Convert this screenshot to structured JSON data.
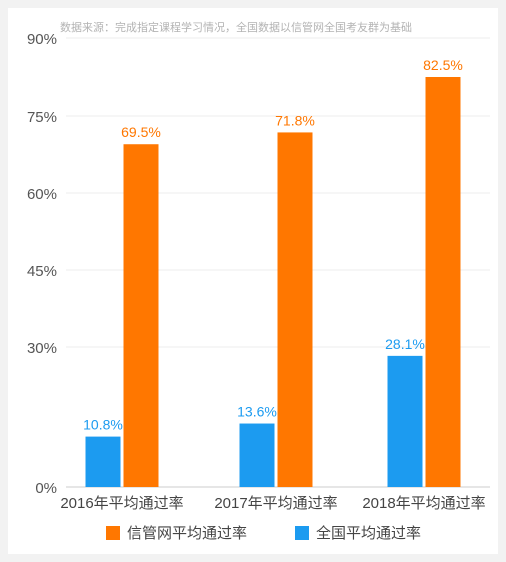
{
  "chart_data": {
    "type": "bar",
    "note": "数据来源：完成指定课程学习情况，全国数据以信管网全国考友群为基础",
    "categories": [
      "2016年平均通过率",
      "2017年平均通过率",
      "2018年平均通过率"
    ],
    "y_ticks": [
      "0%",
      "30%",
      "45%",
      "60%",
      "75%",
      "90%"
    ],
    "ylim": [
      0,
      90
    ],
    "series": [
      {
        "name": "全国平均通过率",
        "values": [
          10.8,
          13.6,
          28.1
        ],
        "labels": [
          "10.8%",
          "13.6%",
          "28.1%"
        ],
        "color": "#1c9bf0"
      },
      {
        "name": "信管网平均通过率",
        "values": [
          69.5,
          71.8,
          82.5
        ],
        "labels": [
          "69.5%",
          "71.8%",
          "82.5%"
        ],
        "color": "#ff7700"
      }
    ],
    "legend_order": [
      1,
      0
    ],
    "legend_position": "bottom",
    "grid": true
  }
}
